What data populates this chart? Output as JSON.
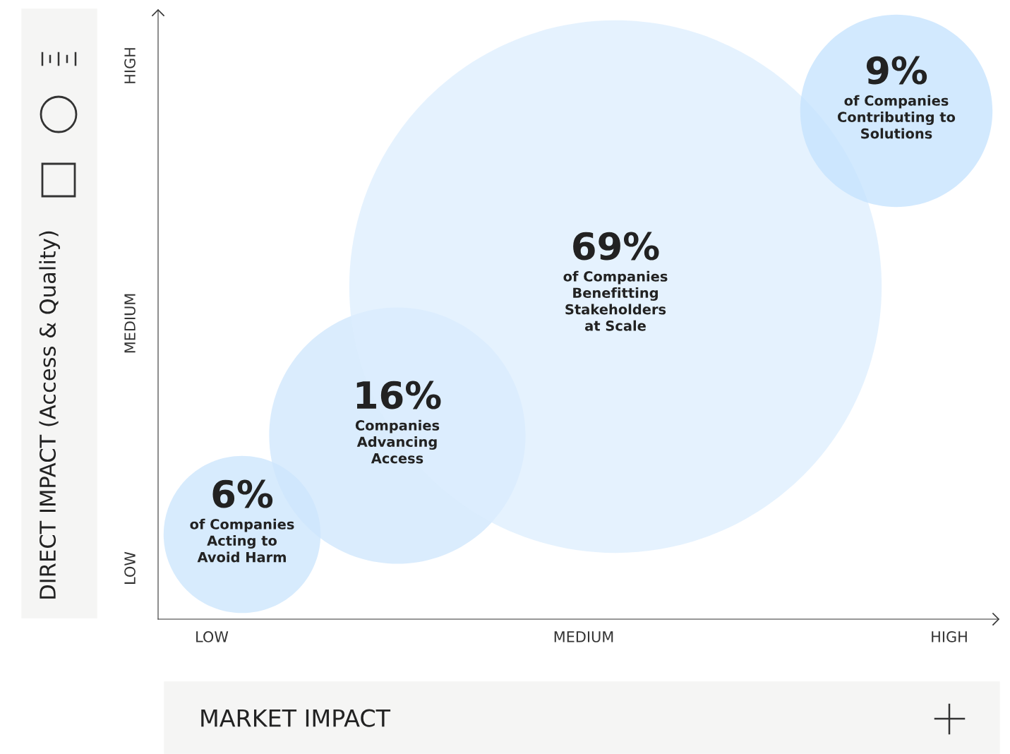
{
  "chart_data": {
    "type": "other",
    "xlabel": "MARKET IMPACT",
    "ylabel": "DIRECT IMPACT (Access & Quality)",
    "categories": [
      "of Companies\nActing to\nAvoid Harm",
      "Companies\nAdvancing\nAccess",
      "of Companies\nBenefitting\nStakeholders\nat Scale",
      "of Companies\nContributing to\nSolutions"
    ],
    "values": [
      6,
      16,
      69,
      9
    ],
    "value_labels": [
      "6%",
      "16%",
      "69%",
      "9%"
    ],
    "colors": [
      "#c9e4fc",
      "#cde6fc",
      "#dcedfd",
      "#c3e2fd"
    ],
    "annotations": [
      "LOW",
      "MEDIUM",
      "HIGH",
      "LOW",
      "MEDIUM",
      "HIGH"
    ]
  }
}
